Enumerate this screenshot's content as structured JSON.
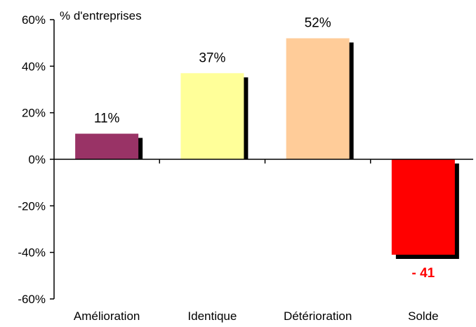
{
  "chart_data": {
    "type": "bar",
    "title": "",
    "unit_label": "% d'entreprises",
    "categories": [
      "Amélioration",
      "Identique",
      "Détérioration",
      "Solde"
    ],
    "values": [
      11,
      37,
      52,
      -41
    ],
    "data_labels": [
      "11%",
      "37%",
      "52%",
      "- 41"
    ],
    "colors": [
      "#993366",
      "#ffff99",
      "#ffcc99",
      "#ff0000"
    ],
    "data_label_colors": [
      "#000000",
      "#000000",
      "#000000",
      "#ff0000"
    ],
    "ylim": [
      -60,
      60
    ],
    "yticks": [
      60,
      40,
      20,
      0,
      -20,
      -40,
      -60
    ],
    "ytick_labels": [
      "60%",
      "40%",
      "20%",
      "0%",
      "-20%",
      "-40%",
      "-60%"
    ],
    "grid": false,
    "legend": "none",
    "bar_shadow": true
  }
}
